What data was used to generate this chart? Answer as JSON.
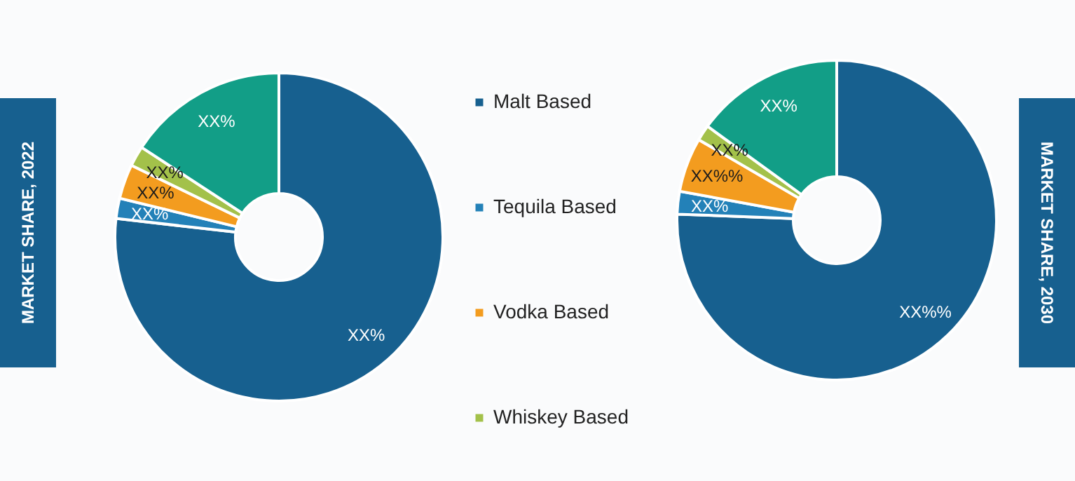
{
  "chart_data": [
    {
      "type": "donut",
      "title": "MARKET SHARE, 2022",
      "categories": [
        "Malt Based",
        "Tequila Based",
        "Vodka Based",
        "Whiskey Based",
        null
      ],
      "values": [
        76.8,
        2.0,
        3.4,
        2.0,
        15.8
      ],
      "colors": [
        "#17608f",
        "#2381b8",
        "#f39c1f",
        "#a3c14a",
        "#129e87"
      ],
      "value_labels": [
        "XX%",
        "XX%",
        "XX%",
        "XX%",
        "XX%"
      ],
      "legend": "right"
    },
    {
      "type": "donut",
      "title": "MARKET SHARE, 2030",
      "categories": [
        null,
        null,
        null,
        null,
        null
      ],
      "values": [
        75.6,
        2.3,
        5.5,
        1.6,
        15.0
      ],
      "colors": [
        "#17608f",
        "#2381b8",
        "#f39c1f",
        "#a3c14a",
        "#129e87"
      ],
      "value_labels": [
        "XX%%",
        "XX%",
        "XX%%",
        "XX%",
        "XX%"
      ]
    }
  ]
}
